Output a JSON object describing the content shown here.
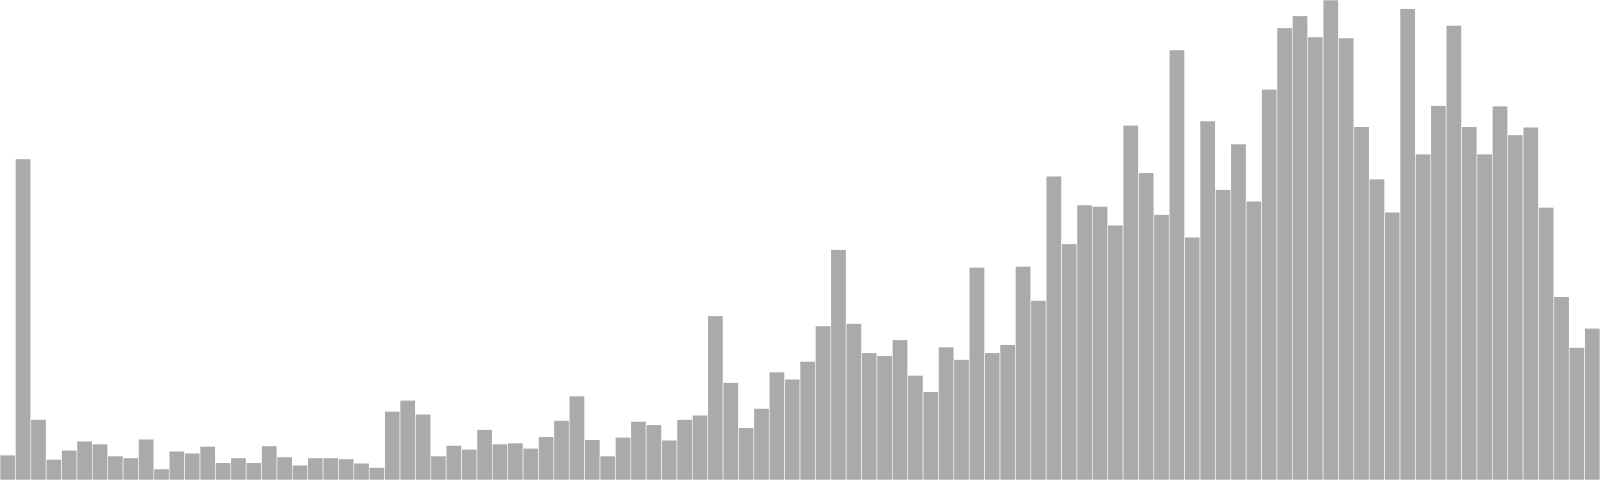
{
  "chart_data": {
    "type": "bar",
    "title": "",
    "xlabel": "",
    "ylabel": "",
    "ylim": [
      0,
      100
    ],
    "grid": false,
    "legend": "none",
    "bar_color": "#aaaaaa",
    "background": "#ffffff",
    "values": [
      5.2,
      66.9,
      12.6,
      4.3,
      6.2,
      8.1,
      7.5,
      5.0,
      4.6,
      8.5,
      2.3,
      6.0,
      5.6,
      7.0,
      3.6,
      4.6,
      3.6,
      7.1,
      4.8,
      3.1,
      4.6,
      4.6,
      4.4,
      3.5,
      2.6,
      14.3,
      16.6,
      13.7,
      5.0,
      7.2,
      6.4,
      10.5,
      7.5,
      7.7,
      6.6,
      9.0,
      12.4,
      17.5,
      8.4,
      5.0,
      8.9,
      12.2,
      11.5,
      8.3,
      12.6,
      13.5,
      34.2,
      20.3,
      10.9,
      14.9,
      22.5,
      21.0,
      24.7,
      32.1,
      48.0,
      32.6,
      26.5,
      25.9,
      29.2,
      21.8,
      18.4,
      27.7,
      25.1,
      44.3,
      26.5,
      28.2,
      44.5,
      37.4,
      63.3,
      49.2,
      57.3,
      57.0,
      53.1,
      73.9,
      64.0,
      55.3,
      89.6,
      50.6,
      74.8,
      60.5,
      70.0,
      58.1,
      81.4,
      94.2,
      96.7,
      92.3,
      100.0,
      92.1,
      73.6,
      62.7,
      55.8,
      98.2,
      67.9,
      78.0,
      94.7,
      73.6,
      67.9,
      77.9,
      71.9,
      73.5,
      56.8,
      38.2,
      27.6,
      31.6
    ]
  }
}
